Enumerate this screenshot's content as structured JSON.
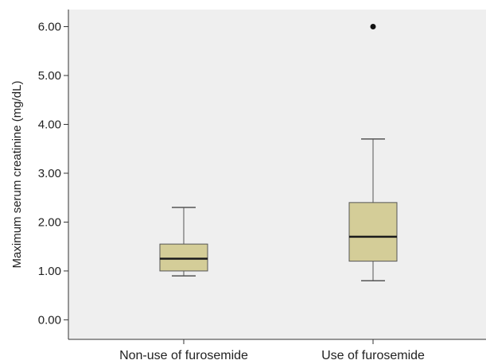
{
  "chart_data": {
    "type": "boxplot",
    "title": "",
    "xlabel": "",
    "ylabel": "Maximum serum creatinine (mg/dL)",
    "ylim": [
      -0.4,
      6.35
    ],
    "yticks": [
      {
        "value": 0,
        "label": "0.00"
      },
      {
        "value": 1,
        "label": "1.00"
      },
      {
        "value": 2,
        "label": "2.00"
      },
      {
        "value": 3,
        "label": "3.00"
      },
      {
        "value": 4,
        "label": "4.00"
      },
      {
        "value": 5,
        "label": "5.00"
      },
      {
        "value": 6,
        "label": "6.00"
      }
    ],
    "grid": false,
    "categories": [
      "Non-use of furosemide",
      "Use of furosemide"
    ],
    "boxes": [
      {
        "category": "Non-use of furosemide",
        "min": 0.9,
        "q1": 1.0,
        "median": 1.25,
        "q3": 1.55,
        "max": 2.3,
        "outliers": []
      },
      {
        "category": "Use of furosemide",
        "min": 0.8,
        "q1": 1.2,
        "median": 1.7,
        "q3": 2.4,
        "max": 3.7,
        "outliers": [
          6.0
        ]
      }
    ]
  },
  "colors": {
    "plot_background": "#efefef",
    "box_fill": "#d4cd98",
    "box_stroke": "#555555",
    "median_line": "#1a1a1a",
    "outlier": "#111111"
  }
}
